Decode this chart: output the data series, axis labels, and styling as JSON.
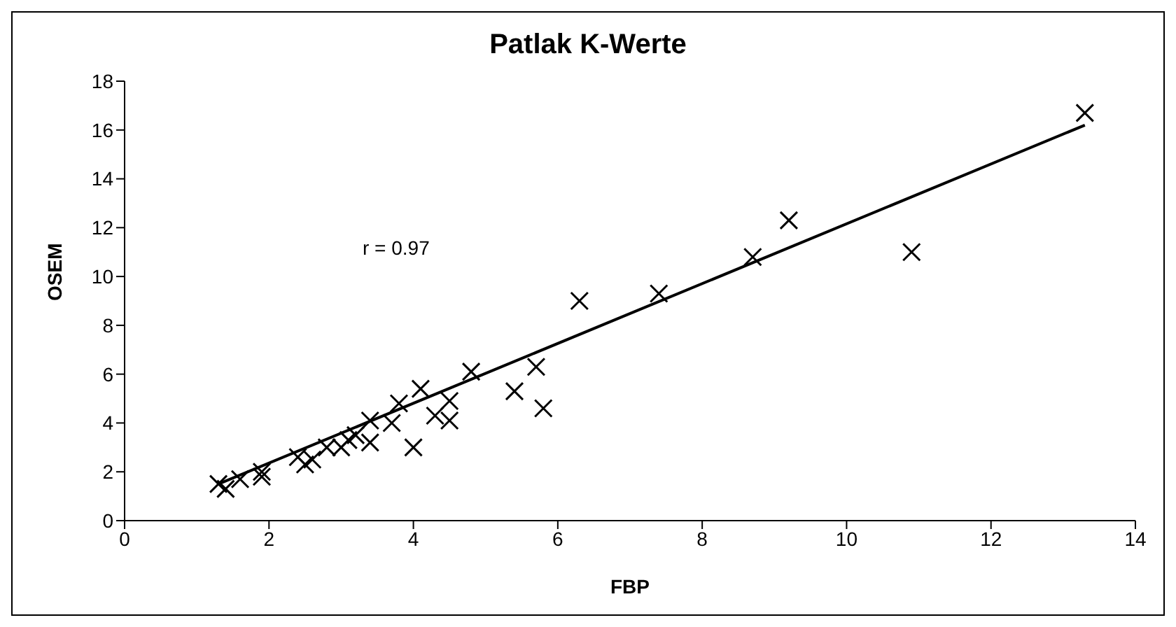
{
  "chart_data": {
    "type": "scatter",
    "title": "Patlak K-Werte",
    "xlabel": "FBP",
    "ylabel": "OSEM",
    "annotations": [
      "r = 0.97"
    ],
    "xlim": [
      0,
      14
    ],
    "xticks": [
      0,
      2,
      4,
      6,
      8,
      10,
      12,
      14
    ],
    "ylim": [
      0,
      18
    ],
    "yticks": [
      0,
      2,
      4,
      6,
      8,
      10,
      12,
      14,
      16,
      18
    ],
    "grid": false,
    "marker": "cross",
    "series": [
      {
        "color": "#000000",
        "x": [
          1.3,
          1.4,
          1.6,
          1.9,
          1.9,
          2.4,
          2.5,
          2.6,
          2.8,
          3.0,
          3.1,
          3.2,
          3.4,
          3.4,
          3.7,
          3.8,
          4.0,
          4.1,
          4.3,
          4.5,
          4.5,
          4.8,
          5.4,
          5.7,
          5.8,
          6.3,
          7.4,
          8.7,
          9.2,
          10.9,
          13.3
        ],
        "values": [
          1.5,
          1.3,
          1.7,
          1.8,
          2.0,
          2.6,
          2.3,
          2.5,
          3.0,
          3.0,
          3.3,
          3.5,
          4.1,
          3.2,
          4.0,
          4.8,
          3.0,
          5.4,
          4.3,
          4.9,
          4.1,
          6.1,
          5.3,
          6.3,
          4.6,
          9.0,
          9.3,
          10.8,
          12.3,
          11.0,
          16.7
        ]
      },
      {
        "type": "line",
        "color": "#000000",
        "x": [
          1.3,
          13.3
        ],
        "values": [
          1.5,
          16.2
        ],
        "marker": "none",
        "line_style": "solid"
      }
    ]
  }
}
